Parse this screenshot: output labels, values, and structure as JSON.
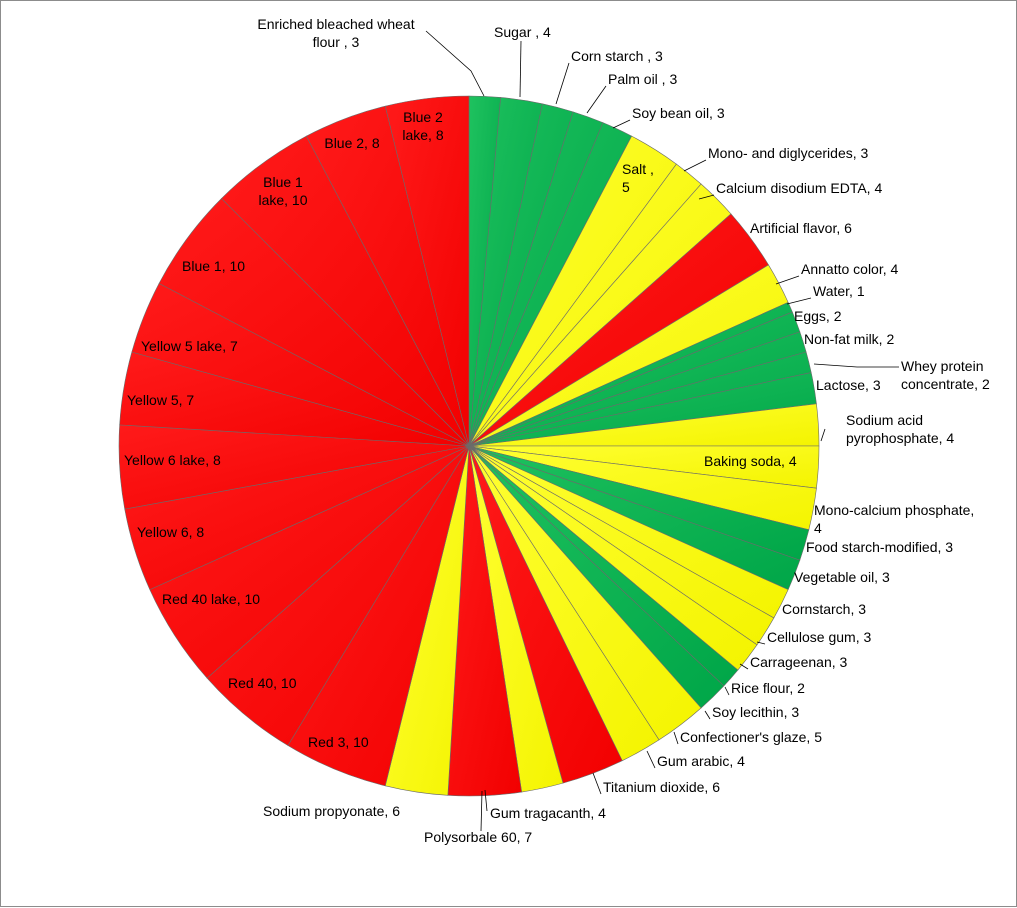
{
  "chart_data": {
    "type": "pie",
    "title": "",
    "colors": {
      "red": "#ff0000",
      "yellow": "#ffff00",
      "green": "#00b050"
    },
    "slices": [
      {
        "label": "Enriched bleached wheat flour",
        "value": 3,
        "text": [
          "Enriched bleached wheat",
          "flour , 3"
        ],
        "color": "green"
      },
      {
        "label": "Sugar",
        "value": 4,
        "text": [
          "Sugar , 4"
        ],
        "color": "green"
      },
      {
        "label": "Corn starch",
        "value": 3,
        "text": [
          "Corn starch , 3"
        ],
        "color": "green"
      },
      {
        "label": "Palm oil",
        "value": 3,
        "text": [
          "Palm oil , 3"
        ],
        "color": "green"
      },
      {
        "label": "Soy bean oil",
        "value": 3,
        "text": [
          "Soy bean oil, 3"
        ],
        "color": "green"
      },
      {
        "label": "Salt",
        "value": 5,
        "text": [
          "Salt ,",
          "5"
        ],
        "color": "yellow"
      },
      {
        "label": "Mono- and diglycerides",
        "value": 3,
        "text": [
          "Mono- and diglycerides, 3"
        ],
        "color": "yellow"
      },
      {
        "label": "Calcium disodium EDTA",
        "value": 4,
        "text": [
          "Calcium disodium EDTA, 4"
        ],
        "color": "yellow"
      },
      {
        "label": "Artificial flavor",
        "value": 6,
        "text": [
          "Artificial flavor,  6"
        ],
        "color": "red"
      },
      {
        "label": "Annatto color",
        "value": 4,
        "text": [
          "Annatto  color, 4"
        ],
        "color": "yellow"
      },
      {
        "label": "Water",
        "value": 1,
        "text": [
          "Water, 1"
        ],
        "color": "green"
      },
      {
        "label": "Eggs",
        "value": 2,
        "text": [
          "Eggs, 2"
        ],
        "color": "green"
      },
      {
        "label": "Non-fat milk",
        "value": 2,
        "text": [
          "Non-fat milk, 2"
        ],
        "color": "green"
      },
      {
        "label": "Whey protein concentrate",
        "value": 2,
        "text": [
          "Whey protein",
          "concentrate,  2"
        ],
        "color": "green"
      },
      {
        "label": "Lactose",
        "value": 3,
        "text": [
          "Lactose, 3"
        ],
        "color": "green"
      },
      {
        "label": "Sodium acid pyrophosphate",
        "value": 4,
        "text": [
          "Sodium acid",
          "pyrophosphate,  4"
        ],
        "color": "yellow"
      },
      {
        "label": "Baking soda",
        "value": 4,
        "text": [
          "Baking soda, 4"
        ],
        "color": "yellow"
      },
      {
        "label": "Mono-calcium phosphate",
        "value": 4,
        "text": [
          "Mono-calcium phosphate,",
          "4"
        ],
        "color": "yellow"
      },
      {
        "label": "Food starch-modified",
        "value": 3,
        "text": [
          "Food starch-modified, 3"
        ],
        "color": "green"
      },
      {
        "label": "Vegetable oil",
        "value": 3,
        "text": [
          "Vegetable oil, 3"
        ],
        "color": "green"
      },
      {
        "label": "Cornstarch",
        "value": 3,
        "text": [
          "Cornstarch,  3"
        ],
        "color": "yellow"
      },
      {
        "label": "Cellulose gum",
        "value": 3,
        "text": [
          "Cellulose gum, 3"
        ],
        "color": "yellow"
      },
      {
        "label": "Carrageenan",
        "value": 3,
        "text": [
          "Carrageenan,  3"
        ],
        "color": "yellow"
      },
      {
        "label": "Rice flour",
        "value": 2,
        "text": [
          "Rice flour,  2"
        ],
        "color": "green"
      },
      {
        "label": "Soy lecithin",
        "value": 3,
        "text": [
          "Soy lecithin,  3"
        ],
        "color": "green"
      },
      {
        "label": "Confectioner's glaze",
        "value": 5,
        "text": [
          "Confectioner's glaze, 5"
        ],
        "color": "yellow"
      },
      {
        "label": "Gum arabic",
        "value": 4,
        "text": [
          "Gum arabic, 4"
        ],
        "color": "yellow"
      },
      {
        "label": "Titanium dioxide",
        "value": 6,
        "text": [
          "Titanium dioxide, 6"
        ],
        "color": "red"
      },
      {
        "label": "Gum tragacanth",
        "value": 4,
        "text": [
          "Gum tragacanth,  4"
        ],
        "color": "yellow"
      },
      {
        "label": "Polysorbale 60",
        "value": 7,
        "text": [
          "Polysorbale 60, 7"
        ],
        "color": "red"
      },
      {
        "label": "Sodium propyonate",
        "value": 6,
        "text": [
          "Sodium propyonate,  6"
        ],
        "color": "yellow"
      },
      {
        "label": "Red 3",
        "value": 10,
        "text": [
          "Red 3, 10"
        ],
        "color": "red"
      },
      {
        "label": "Red 40",
        "value": 10,
        "text": [
          "Red 40, 10"
        ],
        "color": "red"
      },
      {
        "label": "Red 40 lake",
        "value": 10,
        "text": [
          "Red 40 lake, 10"
        ],
        "color": "red"
      },
      {
        "label": "Yellow 6",
        "value": 8,
        "text": [
          "Yellow  6, 8"
        ],
        "color": "red"
      },
      {
        "label": "Yellow 6 lake",
        "value": 8,
        "text": [
          "Yellow  6 lake,  8"
        ],
        "color": "red"
      },
      {
        "label": "Yellow 5",
        "value": 7,
        "text": [
          "Yellow 5, 7"
        ],
        "color": "red"
      },
      {
        "label": "Yellow 5 lake",
        "value": 7,
        "text": [
          "Yellow  5 lake, 7"
        ],
        "color": "red"
      },
      {
        "label": "Blue 1",
        "value": 10,
        "text": [
          "Blue 1, 10"
        ],
        "color": "red"
      },
      {
        "label": "Blue 1 lake",
        "value": 10,
        "text": [
          "Blue 1",
          "lake, 10"
        ],
        "color": "red"
      },
      {
        "label": "Blue 2",
        "value": 8,
        "text": [
          "Blue 2, 8"
        ],
        "color": "red"
      },
      {
        "label": "Blue 2 lake",
        "value": 8,
        "text": [
          "Blue 2",
          "lake, 8"
        ],
        "color": "red"
      }
    ]
  }
}
